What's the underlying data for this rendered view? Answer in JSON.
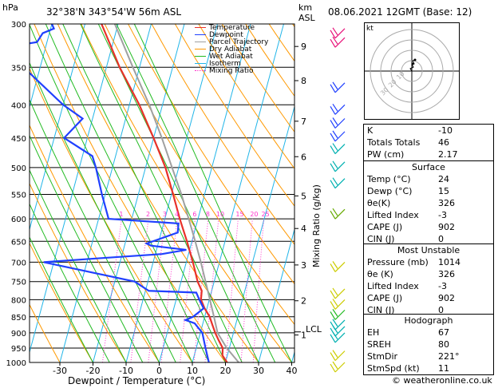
{
  "header": {
    "hpa_label": "hPa",
    "location": "32°38'N  343°54'W  56m  ASL",
    "km_label": "km",
    "asl_label": "ASL",
    "datetime": "08.06.2021  12GMT  (Base: 12)"
  },
  "legend": [
    {
      "name": "Temperature",
      "color": "#e8312a",
      "dash": ""
    },
    {
      "name": "Dewpoint",
      "color": "#2040ff",
      "dash": ""
    },
    {
      "name": "Parcel Trajectory",
      "color": "#a0a0a0",
      "dash": ""
    },
    {
      "name": "Dry Adiabat",
      "color": "#ff9900",
      "dash": ""
    },
    {
      "name": "Wet Adiabat",
      "color": "#22bb22",
      "dash": ""
    },
    {
      "name": "Isotherm",
      "color": "#21b5e8",
      "dash": ""
    },
    {
      "name": "Mixing Ratio",
      "color": "#ff33cc",
      "dash": "1,2"
    }
  ],
  "axes": {
    "xlabel": "Dewpoint / Temperature (°C)",
    "ylabel_right": "Mixing Ratio (g/kg)",
    "lcl_label": "LCL"
  },
  "chart_data": {
    "type": "line",
    "x_ticks": [
      -30,
      -20,
      -10,
      0,
      10,
      20,
      30,
      40
    ],
    "x_tick_labels": [
      "-30",
      "-20",
      "-10",
      "0",
      "10",
      "20",
      "30",
      "40"
    ],
    "pressure_levels": [
      300,
      350,
      400,
      450,
      500,
      550,
      600,
      650,
      700,
      750,
      800,
      850,
      900,
      950,
      1000
    ],
    "km_ticks": [
      {
        "label": "9",
        "p": 325
      },
      {
        "label": "8",
        "p": 367
      },
      {
        "label": "7",
        "p": 424
      },
      {
        "label": "6",
        "p": 481
      },
      {
        "label": "5",
        "p": 553
      },
      {
        "label": "4",
        "p": 621
      },
      {
        "label": "3",
        "p": 707
      },
      {
        "label": "2",
        "p": 803
      },
      {
        "label": "1",
        "p": 907
      }
    ],
    "lcl_p": 897,
    "mixing_ratio_labels": [
      "1",
      "2",
      "3",
      "4",
      "6",
      "8",
      "10",
      "15",
      "20",
      "25"
    ],
    "mixing_ratio_values": [
      1,
      2,
      3,
      4,
      6,
      8,
      10,
      15,
      20,
      25
    ],
    "series": [
      {
        "name": "Temperature",
        "color": "#e8312a",
        "points": [
          {
            "p": 1000,
            "t": 20.5
          },
          {
            "p": 975,
            "t": 18.5
          },
          {
            "p": 950,
            "t": 18.0
          },
          {
            "p": 925,
            "t": 16.2
          },
          {
            "p": 900,
            "t": 14.5
          },
          {
            "p": 875,
            "t": 13.0
          },
          {
            "p": 850,
            "t": 11.5
          },
          {
            "p": 825,
            "t": 9.3
          },
          {
            "p": 800,
            "t": 7.5
          },
          {
            "p": 775,
            "t": 7.0
          },
          {
            "p": 750,
            "t": 5.0
          },
          {
            "p": 700,
            "t": 2.0
          },
          {
            "p": 650,
            "t": -1.5
          },
          {
            "p": 600,
            "t": -5.5
          },
          {
            "p": 550,
            "t": -9.5
          },
          {
            "p": 500,
            "t": -14.0
          },
          {
            "p": 450,
            "t": -20.0
          },
          {
            "p": 400,
            "t": -27.0
          },
          {
            "p": 350,
            "t": -36.0
          },
          {
            "p": 300,
            "t": -45.0
          }
        ]
      },
      {
        "name": "Dewpoint",
        "color": "#2040ff",
        "points": [
          {
            "p": 1000,
            "t": 15.0
          },
          {
            "p": 950,
            "t": 12.8
          },
          {
            "p": 900,
            "t": 10.6
          },
          {
            "p": 870,
            "t": 7.5
          },
          {
            "p": 860,
            "t": 4.5
          },
          {
            "p": 850,
            "t": 6.5
          },
          {
            "p": 825,
            "t": 9.0
          },
          {
            "p": 800,
            "t": 7.0
          },
          {
            "p": 780,
            "t": 5.5
          },
          {
            "p": 775,
            "t": -9.0
          },
          {
            "p": 750,
            "t": -14.0
          },
          {
            "p": 700,
            "t": -43.0
          },
          {
            "p": 690,
            "t": -26.0
          },
          {
            "p": 680,
            "t": -8.0
          },
          {
            "p": 670,
            "t": -1.0
          },
          {
            "p": 660,
            "t": -12.0
          },
          {
            "p": 655,
            "t": -13.5
          },
          {
            "p": 630,
            "t": -5.0
          },
          {
            "p": 610,
            "t": -5.5
          },
          {
            "p": 600,
            "t": -27.0
          },
          {
            "p": 550,
            "t": -31.0
          },
          {
            "p": 500,
            "t": -35.0
          },
          {
            "p": 480,
            "t": -37.0
          },
          {
            "p": 450,
            "t": -47.0
          },
          {
            "p": 420,
            "t": -43.0
          },
          {
            "p": 400,
            "t": -50.0
          },
          {
            "p": 350,
            "t": -65.0
          },
          {
            "p": 325,
            "t": -71.0
          },
          {
            "p": 320,
            "t": -63.0
          },
          {
            "p": 310,
            "t": -62.0
          },
          {
            "p": 305,
            "t": -59.0
          },
          {
            "p": 300,
            "t": -60.0
          }
        ]
      },
      {
        "name": "Parcel Trajectory",
        "color": "#a0a0a0",
        "points": [
          {
            "p": 1000,
            "t": 24.0
          },
          {
            "p": 950,
            "t": 19.2
          },
          {
            "p": 900,
            "t": 15.2
          },
          {
            "p": 850,
            "t": 12.8
          },
          {
            "p": 800,
            "t": 10.2
          },
          {
            "p": 750,
            "t": 7.4
          },
          {
            "p": 700,
            "t": 4.4
          },
          {
            "p": 650,
            "t": 1.0
          },
          {
            "p": 600,
            "t": -2.8
          },
          {
            "p": 550,
            "t": -7.0
          },
          {
            "p": 500,
            "t": -12.0
          },
          {
            "p": 450,
            "t": -17.5
          },
          {
            "p": 400,
            "t": -24.0
          },
          {
            "p": 350,
            "t": -32.0
          },
          {
            "p": 300,
            "t": -41.0
          }
        ]
      }
    ],
    "wind_barbs": [
      {
        "p": 305,
        "color": "#e8147a"
      },
      {
        "p": 315,
        "color": "#e8147a"
      },
      {
        "p": 370,
        "color": "#2040ff"
      },
      {
        "p": 400,
        "color": "#2040ff"
      },
      {
        "p": 420,
        "color": "#2040ff"
      },
      {
        "p": 440,
        "color": "#2040ff"
      },
      {
        "p": 460,
        "color": "#00b0b0"
      },
      {
        "p": 490,
        "color": "#00b0b0"
      },
      {
        "p": 520,
        "color": "#00b0b0"
      },
      {
        "p": 580,
        "color": "#66aa00"
      },
      {
        "p": 700,
        "color": "#cccc00"
      },
      {
        "p": 770,
        "color": "#cccc00"
      },
      {
        "p": 800,
        "color": "#cccc00"
      },
      {
        "p": 830,
        "color": "#22bb22"
      },
      {
        "p": 860,
        "color": "#00b0b0"
      },
      {
        "p": 880,
        "color": "#00b0b0"
      },
      {
        "p": 900,
        "color": "#00b0b0"
      },
      {
        "p": 960,
        "color": "#cccc00"
      },
      {
        "p": 1000,
        "color": "#cccc00"
      }
    ]
  },
  "hodograph": {
    "label": "kt",
    "ring_labels": [
      "10",
      "20",
      "30"
    ]
  },
  "indices": [
    {
      "label": "K",
      "value": "-10"
    },
    {
      "label": "Totals Totals",
      "value": "46"
    },
    {
      "label": "PW (cm)",
      "value": "2.17"
    }
  ],
  "surface": {
    "title": "Surface",
    "rows": [
      {
        "label": "Temp (°C)",
        "value": "24"
      },
      {
        "label": "Dewp (°C)",
        "value": "15"
      },
      {
        "label": "θe(K)",
        "value": "326"
      },
      {
        "label": "Lifted Index",
        "value": "-3"
      },
      {
        "label": "CAPE (J)",
        "value": "902"
      },
      {
        "label": "CIN (J)",
        "value": "0"
      }
    ]
  },
  "most_unstable": {
    "title": "Most Unstable",
    "rows": [
      {
        "label": "Pressure (mb)",
        "value": "1014"
      },
      {
        "label": "θe (K)",
        "value": "326"
      },
      {
        "label": "Lifted Index",
        "value": "-3"
      },
      {
        "label": "CAPE (J)",
        "value": "902"
      },
      {
        "label": "CIN (J)",
        "value": "0"
      }
    ]
  },
  "hodograph_table": {
    "title": "Hodograph",
    "rows": [
      {
        "label": "EH",
        "value": "67"
      },
      {
        "label": "SREH",
        "value": "80"
      },
      {
        "label": "StmDir",
        "value": "221°"
      },
      {
        "label": "StmSpd (kt)",
        "value": "11"
      }
    ]
  },
  "footer": {
    "credit": "© weatheronline.co.uk"
  }
}
